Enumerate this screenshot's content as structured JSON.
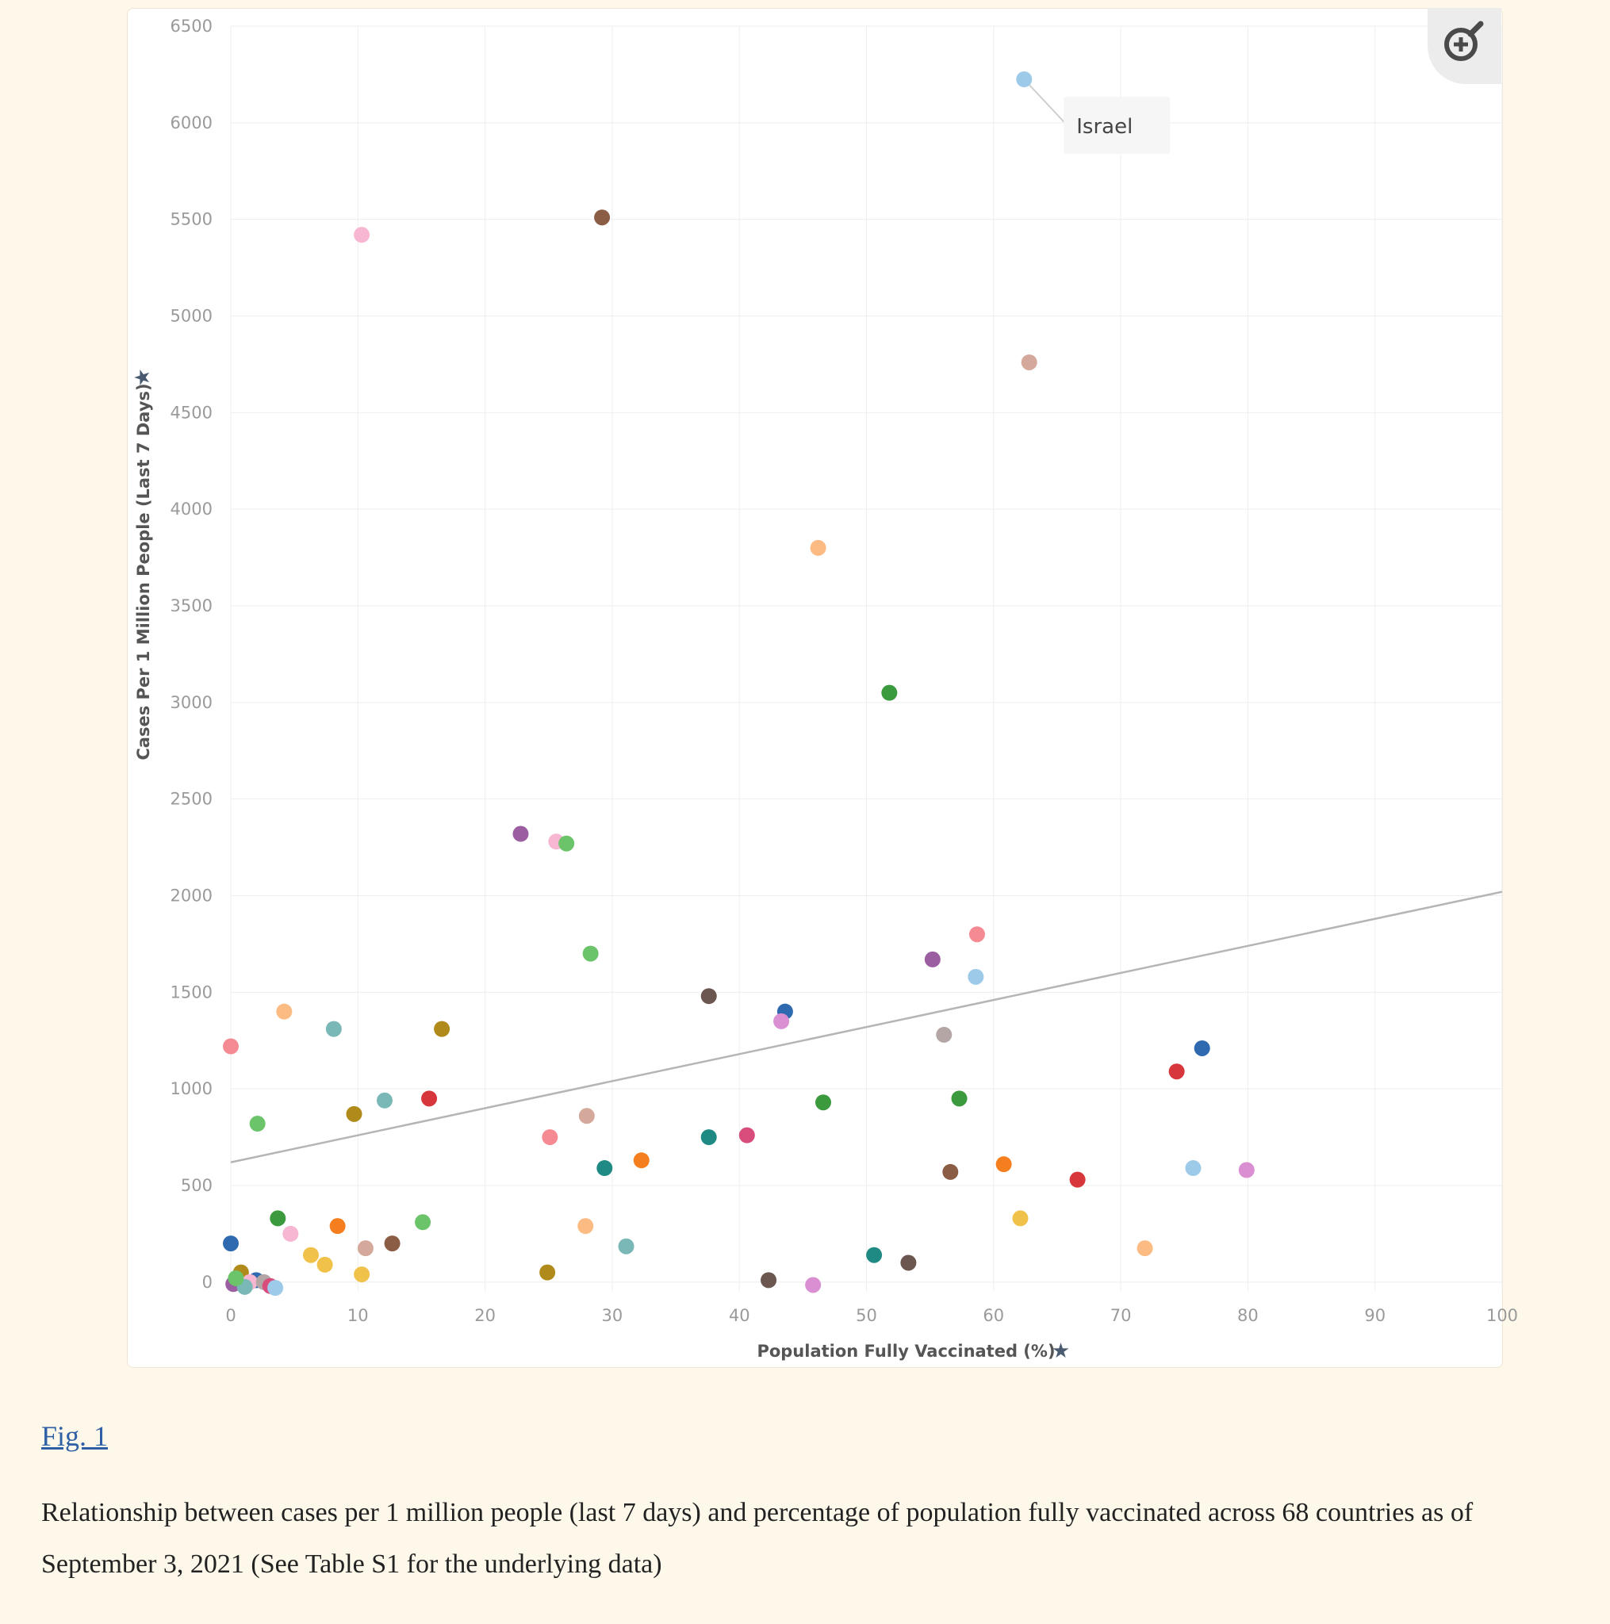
{
  "figure": {
    "link_label": "Fig. 1",
    "caption": "Relationship between cases per 1 million people (last 7 days) and percentage of population fully vaccinated across 68 countries as of September 3, 2021 (See Table S1 for the underlying data)"
  },
  "toolbar": {
    "zoom_icon": "zoom-in-icon"
  },
  "chart_data": {
    "type": "scatter",
    "xlabel": "Population Fully Vaccinated (%)",
    "ylabel": "Cases Per 1 Million People (Last 7 Days)",
    "pin_icon": "pin-icon",
    "xlim": [
      0,
      100
    ],
    "ylim": [
      -50,
      6500
    ],
    "x_ticks": [
      0,
      10,
      20,
      30,
      40,
      50,
      60,
      70,
      80,
      90,
      100
    ],
    "y_ticks": [
      0,
      500,
      1000,
      1500,
      2000,
      2500,
      3000,
      3500,
      4000,
      4500,
      5000,
      5500,
      6000,
      6500
    ],
    "grid": true,
    "annotation": {
      "label": "Israel",
      "x": 62.4,
      "y": 6225
    },
    "trendline": {
      "x": [
        0,
        100
      ],
      "y": [
        620,
        2020
      ]
    },
    "points": [
      {
        "x": 62.4,
        "y": 6225,
        "color": "#9ecae9"
      },
      {
        "x": 29.2,
        "y": 5510,
        "color": "#8b5d45"
      },
      {
        "x": 10.3,
        "y": 5420,
        "color": "#f7b6d2"
      },
      {
        "x": 62.8,
        "y": 4760,
        "color": "#d4a99b"
      },
      {
        "x": 46.2,
        "y": 3800,
        "color": "#fdbb84"
      },
      {
        "x": 51.8,
        "y": 3050,
        "color": "#3a9a3d"
      },
      {
        "x": 22.8,
        "y": 2320,
        "color": "#9b5ea0"
      },
      {
        "x": 25.6,
        "y": 2280,
        "color": "#f7b6d2"
      },
      {
        "x": 26.4,
        "y": 2270,
        "color": "#6cc46a"
      },
      {
        "x": 58.7,
        "y": 1800,
        "color": "#f58a93"
      },
      {
        "x": 28.3,
        "y": 1700,
        "color": "#6cc46a"
      },
      {
        "x": 55.2,
        "y": 1670,
        "color": "#9b5ea0"
      },
      {
        "x": 58.6,
        "y": 1580,
        "color": "#9ecae9"
      },
      {
        "x": 37.6,
        "y": 1480,
        "color": "#6b5750"
      },
      {
        "x": 43.6,
        "y": 1400,
        "color": "#2f6ab0"
      },
      {
        "x": 43.3,
        "y": 1350,
        "color": "#d98fd2"
      },
      {
        "x": 4.2,
        "y": 1400,
        "color": "#fdbb84"
      },
      {
        "x": 8.1,
        "y": 1310,
        "color": "#79b8b6"
      },
      {
        "x": 16.6,
        "y": 1310,
        "color": "#b08a1a"
      },
      {
        "x": 56.1,
        "y": 1280,
        "color": "#b3a6a4"
      },
      {
        "x": 0.0,
        "y": 1220,
        "color": "#f58a93"
      },
      {
        "x": 76.4,
        "y": 1210,
        "color": "#2f6ab0"
      },
      {
        "x": 74.4,
        "y": 1090,
        "color": "#d7363c"
      },
      {
        "x": 15.6,
        "y": 950,
        "color": "#d7363c"
      },
      {
        "x": 12.1,
        "y": 940,
        "color": "#79b8b6"
      },
      {
        "x": 57.3,
        "y": 950,
        "color": "#3a9a3d"
      },
      {
        "x": 46.6,
        "y": 930,
        "color": "#3a9a3d"
      },
      {
        "x": 9.7,
        "y": 870,
        "color": "#b08a1a"
      },
      {
        "x": 28.0,
        "y": 860,
        "color": "#d4a99b"
      },
      {
        "x": 2.1,
        "y": 820,
        "color": "#6cc46a"
      },
      {
        "x": 25.1,
        "y": 750,
        "color": "#f58a93"
      },
      {
        "x": 37.6,
        "y": 750,
        "color": "#1f8a84"
      },
      {
        "x": 40.6,
        "y": 760,
        "color": "#d94d7c"
      },
      {
        "x": 32.3,
        "y": 630,
        "color": "#f57e1e"
      },
      {
        "x": 29.4,
        "y": 590,
        "color": "#1f8a84"
      },
      {
        "x": 60.8,
        "y": 610,
        "color": "#f57e1e"
      },
      {
        "x": 56.6,
        "y": 570,
        "color": "#8b5d45"
      },
      {
        "x": 66.6,
        "y": 530,
        "color": "#d7363c"
      },
      {
        "x": 75.7,
        "y": 590,
        "color": "#9ecae9"
      },
      {
        "x": 79.9,
        "y": 580,
        "color": "#d98fd2"
      },
      {
        "x": 3.7,
        "y": 330,
        "color": "#3a9a3d"
      },
      {
        "x": 15.1,
        "y": 310,
        "color": "#6cc46a"
      },
      {
        "x": 8.4,
        "y": 290,
        "color": "#f57e1e"
      },
      {
        "x": 27.9,
        "y": 290,
        "color": "#fdbb84"
      },
      {
        "x": 4.7,
        "y": 250,
        "color": "#f7b6d2"
      },
      {
        "x": 62.1,
        "y": 330,
        "color": "#f0c24a"
      },
      {
        "x": 0.0,
        "y": 200,
        "color": "#2f6ab0"
      },
      {
        "x": 12.7,
        "y": 200,
        "color": "#8b5d45"
      },
      {
        "x": 10.6,
        "y": 175,
        "color": "#d4a99b"
      },
      {
        "x": 31.1,
        "y": 185,
        "color": "#79b8b6"
      },
      {
        "x": 71.9,
        "y": 175,
        "color": "#fdbb84"
      },
      {
        "x": 6.3,
        "y": 140,
        "color": "#f0c24a"
      },
      {
        "x": 50.6,
        "y": 140,
        "color": "#1f8a84"
      },
      {
        "x": 7.4,
        "y": 90,
        "color": "#f0c24a"
      },
      {
        "x": 53.3,
        "y": 100,
        "color": "#6b5750"
      },
      {
        "x": 0.8,
        "y": 50,
        "color": "#b08a1a"
      },
      {
        "x": 10.3,
        "y": 40,
        "color": "#f0c24a"
      },
      {
        "x": 24.9,
        "y": 50,
        "color": "#b08a1a"
      },
      {
        "x": 2.0,
        "y": 10,
        "color": "#2f6ab0"
      },
      {
        "x": 0.2,
        "y": -10,
        "color": "#9b5ea0"
      },
      {
        "x": 42.3,
        "y": 10,
        "color": "#6b5750"
      },
      {
        "x": 45.8,
        "y": -15,
        "color": "#d98fd2"
      },
      {
        "x": 1.5,
        "y": 0,
        "color": "#f7b6d2"
      },
      {
        "x": 2.6,
        "y": 0,
        "color": "#b3a6a4"
      },
      {
        "x": 3.1,
        "y": -20,
        "color": "#d94d7c"
      },
      {
        "x": 1.1,
        "y": -25,
        "color": "#79b8b6"
      },
      {
        "x": 3.5,
        "y": -30,
        "color": "#9ecae9"
      },
      {
        "x": 0.4,
        "y": 20,
        "color": "#6cc46a"
      }
    ]
  }
}
